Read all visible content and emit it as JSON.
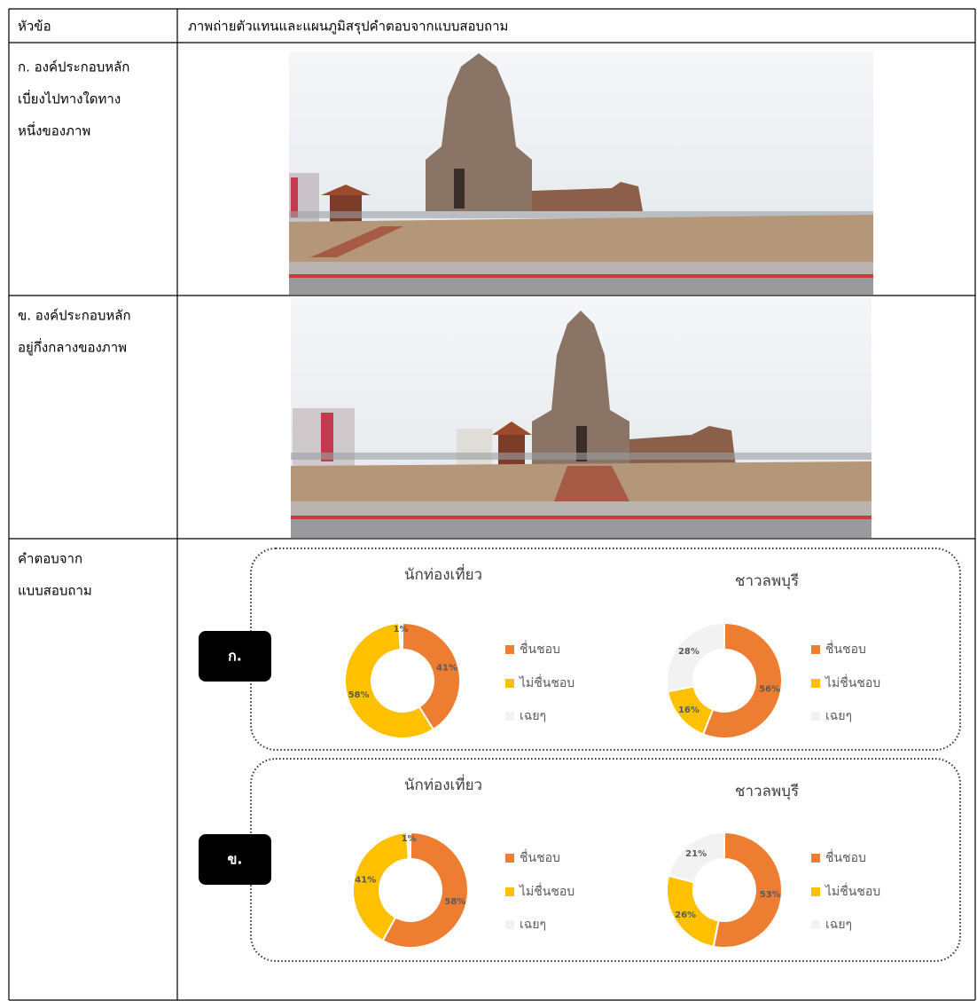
{
  "header": {
    "topic": "หัวข้อ",
    "content": "ภาพถ่ายตัวแทนและแผนภูมิสรุปคำตอบจากแบบสอบถาม"
  },
  "rows": [
    {
      "label": [
        "ก. องค์ประกอบหลัก",
        "เบี่ยงไปทางใดทาง",
        "หนึ่งของภาพ"
      ]
    },
    {
      "label": [
        "ข. องค์ประกอบหลัก",
        "อยู่กึ่งกลางของภาพ"
      ]
    },
    {
      "label": [
        "คำตอบจาก",
        "แบบสอบถาม"
      ]
    }
  ],
  "survey": [
    {
      "badge": "ก.",
      "charts": [
        {
          "type": "donut",
          "title": "นักท่องเที่ยว",
          "categories": [
            "ชื่นชอบ",
            "ไม่ชื่นชอบ",
            "เฉยๆ"
          ],
          "colors": [
            "#ed7d31",
            "#ffc000",
            "#f2f2f2"
          ],
          "values": [
            41,
            58,
            1
          ],
          "value_labels": [
            "41%",
            "58%",
            "1%"
          ]
        },
        {
          "type": "donut",
          "title": "ชาวลพบุรี",
          "categories": [
            "ชื่นชอบ",
            "ไม่ชื่นชอบ",
            "เฉยๆ"
          ],
          "colors": [
            "#ed7d31",
            "#ffc000",
            "#f2f2f2"
          ],
          "values": [
            56,
            16,
            28
          ],
          "value_labels": [
            "56%",
            "16%",
            "28%"
          ]
        }
      ]
    },
    {
      "badge": "ข.",
      "charts": [
        {
          "type": "donut",
          "title": "นักท่องเที่ยว",
          "categories": [
            "ชื่นชอบ",
            "ไม่ชื่นชอบ",
            "เฉยๆ"
          ],
          "colors": [
            "#ed7d31",
            "#ffc000",
            "#f2f2f2"
          ],
          "values": [
            58,
            41,
            1
          ],
          "value_labels": [
            "58%",
            "41%",
            "1%"
          ]
        },
        {
          "type": "donut",
          "title": "ชาวลพบุรี",
          "categories": [
            "ชื่นชอบ",
            "ไม่ชื่นชอบ",
            "เฉยๆ"
          ],
          "colors": [
            "#ed7d31",
            "#ffc000",
            "#f2f2f2"
          ],
          "values": [
            53,
            26,
            21
          ],
          "value_labels": [
            "53%",
            "26%",
            "21%"
          ]
        }
      ]
    }
  ]
}
